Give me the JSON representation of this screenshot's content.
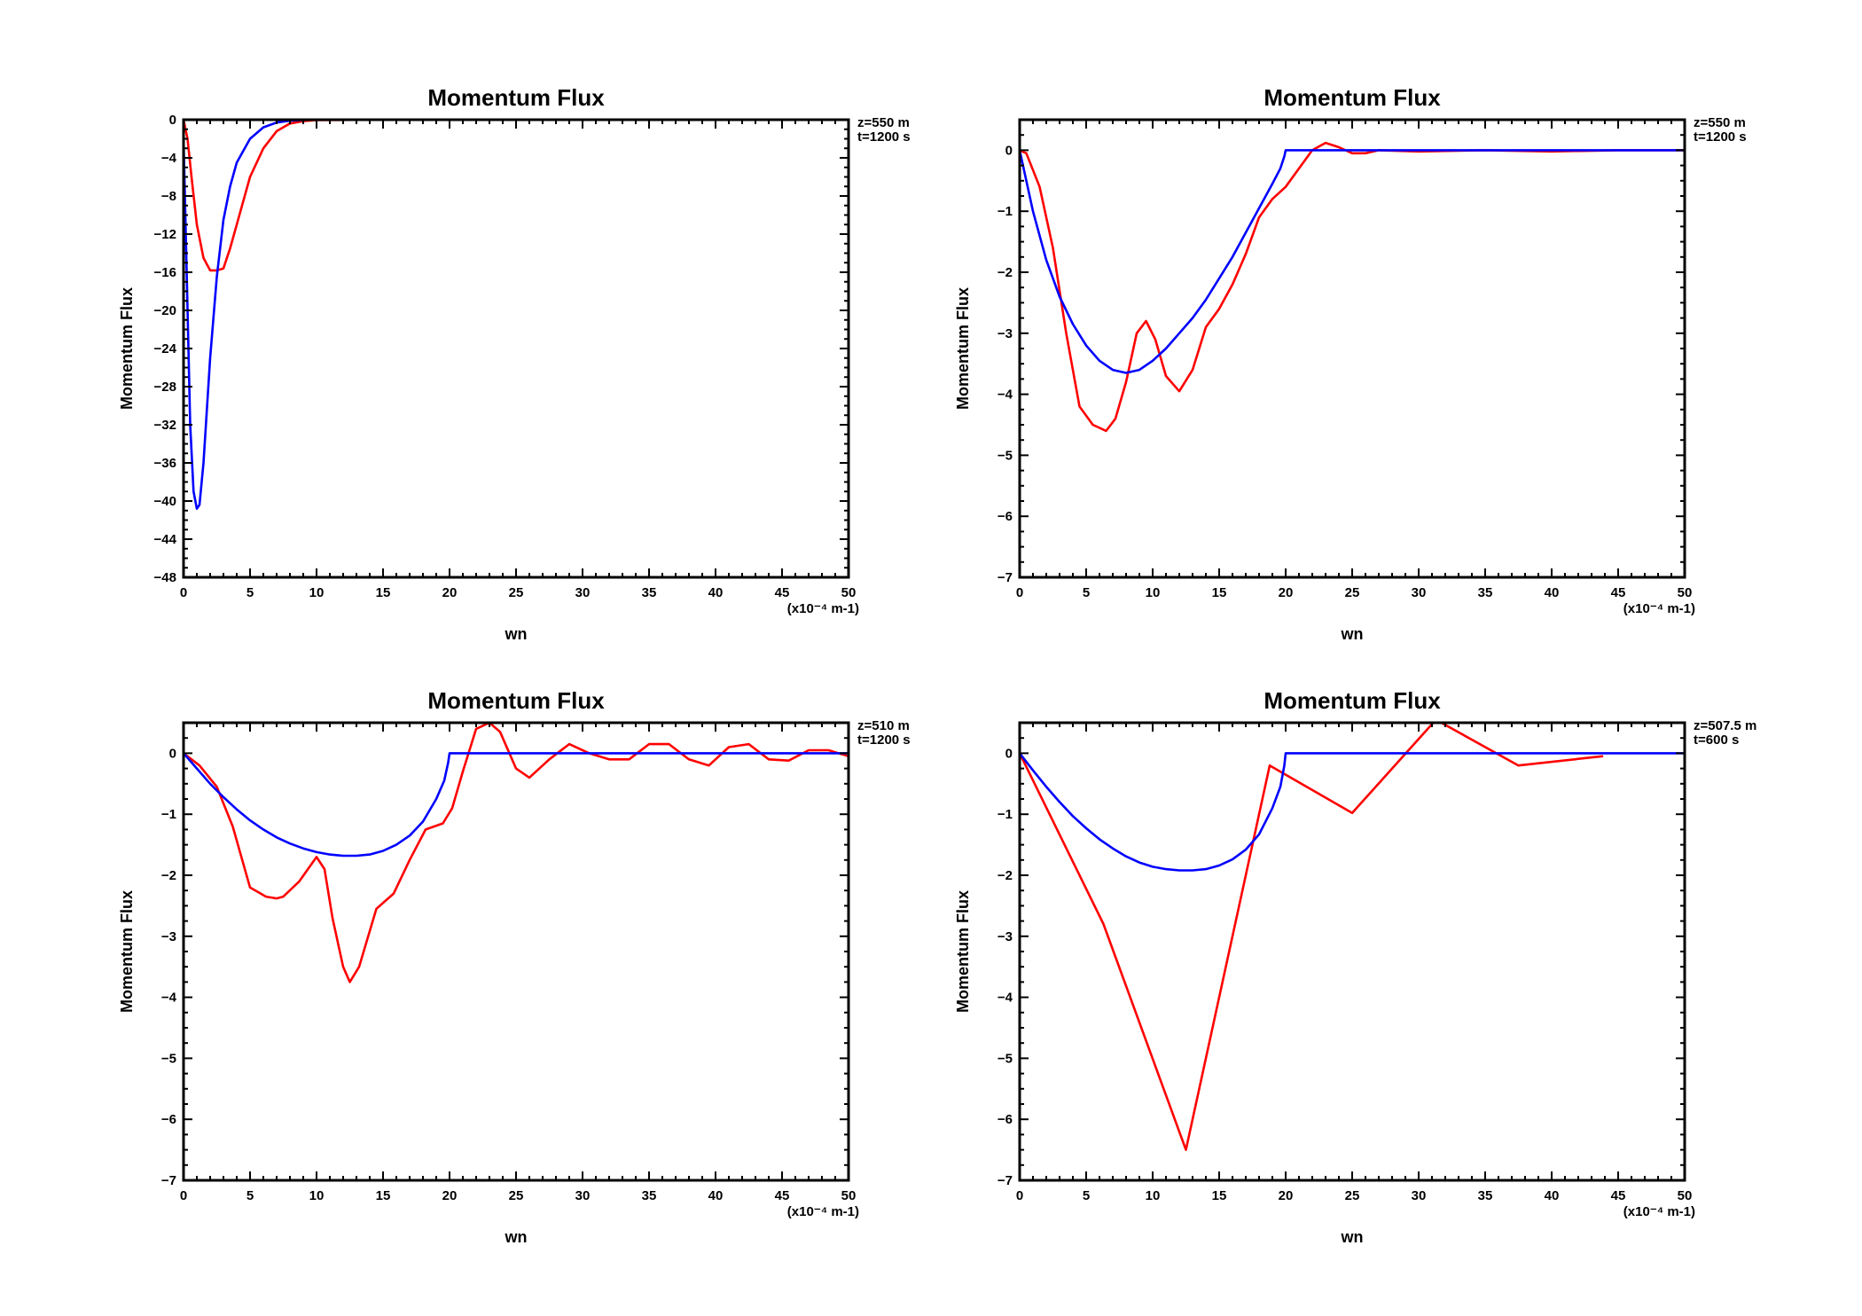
{
  "chart_data": [
    {
      "type": "line",
      "title": "Momentum Flux",
      "xlabel": "wn",
      "ylabel": "Momentum Flux",
      "x_unit_note": "(x10⁻⁴ m-1)",
      "annotations": [
        "z=550 m",
        "t=1200 s"
      ],
      "xlim": [
        0,
        50
      ],
      "ylim": [
        -48,
        0
      ],
      "xticks": [
        0,
        5,
        10,
        15,
        20,
        25,
        30,
        35,
        40,
        45,
        50
      ],
      "yticks": [
        0,
        -4,
        -8,
        -12,
        -16,
        -20,
        -24,
        -28,
        -32,
        -36,
        -40,
        -44,
        -48
      ],
      "grid": false,
      "series": [
        {
          "color": "#ff0000",
          "x": [
            0,
            0.3,
            0.6,
            1.0,
            1.5,
            2.0,
            2.5,
            3.0,
            3.5,
            4.0,
            4.5,
            5.0,
            6.0,
            7.0,
            8.0,
            9.0,
            10.0,
            15,
            20,
            30,
            40,
            50
          ],
          "y": [
            0,
            -2,
            -6,
            -11,
            -14.5,
            -15.8,
            -15.8,
            -15.6,
            -13.5,
            -11,
            -8.5,
            -6,
            -3,
            -1.2,
            -0.4,
            -0.15,
            -0.05,
            0,
            0,
            0,
            0,
            0
          ]
        },
        {
          "color": "#0000ff",
          "x": [
            0,
            0.25,
            0.5,
            0.75,
            1.0,
            1.2,
            1.5,
            2.0,
            2.5,
            3.0,
            3.5,
            4.0,
            5.0,
            6.0,
            7.0,
            8.0,
            9.0,
            10.0,
            15,
            20,
            30,
            40,
            50
          ],
          "y": [
            -2,
            -17,
            -32,
            -39,
            -40.8,
            -40.4,
            -36,
            -25,
            -16.5,
            -10.5,
            -7,
            -4.5,
            -2,
            -0.8,
            -0.3,
            -0.1,
            -0.03,
            0,
            0,
            0,
            0,
            0,
            0
          ]
        }
      ]
    },
    {
      "type": "line",
      "title": "Momentum Flux",
      "xlabel": "wn",
      "ylabel": "Momentum Flux",
      "x_unit_note": "(x10⁻⁴ m-1)",
      "annotations": [
        "z=550 m",
        "t=1200 s"
      ],
      "xlim": [
        0,
        50
      ],
      "ylim": [
        -7,
        0.5
      ],
      "xticks": [
        0,
        5,
        10,
        15,
        20,
        25,
        30,
        35,
        40,
        45,
        50
      ],
      "yticks": [
        0,
        -1,
        -2,
        -3,
        -4,
        -5,
        -6,
        -7
      ],
      "grid": false,
      "series": [
        {
          "color": "#ff0000",
          "x": [
            0,
            0.5,
            1.5,
            2.5,
            3.5,
            4.5,
            5.5,
            6.5,
            7.2,
            8.0,
            8.8,
            9.5,
            10.2,
            11,
            12,
            13,
            14,
            15,
            16,
            17,
            18,
            19,
            20,
            21,
            22,
            23,
            24,
            25,
            26,
            27,
            30,
            35,
            40,
            45,
            50
          ],
          "y": [
            0,
            -0.05,
            -0.6,
            -1.6,
            -3.0,
            -4.2,
            -4.5,
            -4.6,
            -4.4,
            -3.8,
            -3.0,
            -2.8,
            -3.1,
            -3.7,
            -3.95,
            -3.6,
            -2.9,
            -2.6,
            -2.2,
            -1.7,
            -1.1,
            -0.8,
            -0.6,
            -0.3,
            0.0,
            0.12,
            0.05,
            -0.05,
            -0.05,
            0.0,
            -0.02,
            0.0,
            -0.02,
            0.0,
            0.0
          ]
        },
        {
          "color": "#0000ff",
          "x": [
            0,
            1,
            2,
            3,
            4,
            5,
            6,
            7,
            8,
            9,
            10,
            11,
            12,
            13,
            14,
            15,
            16,
            17,
            18,
            19,
            19.6,
            19.9,
            20,
            30,
            40,
            50
          ],
          "y": [
            0,
            -1.0,
            -1.8,
            -2.4,
            -2.85,
            -3.2,
            -3.45,
            -3.6,
            -3.65,
            -3.6,
            -3.45,
            -3.25,
            -3.0,
            -2.75,
            -2.45,
            -2.1,
            -1.75,
            -1.35,
            -0.95,
            -0.55,
            -0.3,
            -0.1,
            0,
            0,
            0,
            0
          ]
        }
      ]
    },
    {
      "type": "line",
      "title": "Momentum Flux",
      "xlabel": "wn",
      "ylabel": "Momentum Flux",
      "x_unit_note": "(x10⁻⁴ m-1)",
      "annotations": [
        "z=510 m",
        "t=1200 s"
      ],
      "xlim": [
        0,
        50
      ],
      "ylim": [
        -7,
        0.5
      ],
      "xticks": [
        0,
        5,
        10,
        15,
        20,
        25,
        30,
        35,
        40,
        45,
        50
      ],
      "yticks": [
        0,
        -1,
        -2,
        -3,
        -4,
        -5,
        -6,
        -7
      ],
      "grid": false,
      "series": [
        {
          "color": "#ff0000",
          "x": [
            0,
            1.2,
            2.5,
            3.7,
            5.0,
            6.2,
            7.0,
            7.5,
            8.7,
            10.0,
            10.6,
            11.2,
            12.0,
            12.5,
            13.2,
            14.5,
            15.8,
            17.0,
            18.2,
            19.5,
            20.2,
            21.0,
            22.0,
            23.0,
            23.8,
            25.0,
            26.0,
            27.5,
            29.0,
            30.5,
            32.0,
            33.5,
            35.0,
            36.5,
            38.0,
            39.5,
            41.0,
            42.5,
            44.0,
            45.5,
            47.0,
            48.5,
            50
          ],
          "y": [
            0,
            -0.2,
            -0.55,
            -1.2,
            -2.2,
            -2.35,
            -2.38,
            -2.35,
            -2.1,
            -1.7,
            -1.9,
            -2.7,
            -3.5,
            -3.75,
            -3.5,
            -2.55,
            -2.3,
            -1.75,
            -1.25,
            -1.15,
            -0.9,
            -0.3,
            0.4,
            0.5,
            0.35,
            -0.25,
            -0.4,
            -0.1,
            0.15,
            0.0,
            -0.1,
            -0.1,
            0.15,
            0.15,
            -0.1,
            -0.2,
            0.1,
            0.15,
            -0.1,
            -0.12,
            0.05,
            0.05,
            -0.05
          ]
        },
        {
          "color": "#0000ff",
          "x": [
            0,
            1,
            2,
            3,
            4,
            5,
            6,
            7,
            8,
            9,
            10,
            11,
            12,
            13,
            14,
            15,
            16,
            17,
            18,
            19,
            19.6,
            19.9,
            20,
            30,
            40,
            50
          ],
          "y": [
            0,
            -0.25,
            -0.5,
            -0.72,
            -0.92,
            -1.1,
            -1.25,
            -1.38,
            -1.48,
            -1.56,
            -1.62,
            -1.66,
            -1.68,
            -1.68,
            -1.66,
            -1.6,
            -1.5,
            -1.35,
            -1.12,
            -0.75,
            -0.45,
            -0.15,
            0,
            0,
            0,
            0
          ]
        }
      ]
    },
    {
      "type": "line",
      "title": "Momentum Flux",
      "xlabel": "wn",
      "ylabel": "Momentum Flux",
      "x_unit_note": "(x10⁻⁴ m-1)",
      "annotations": [
        "z=507.5 m",
        "t=600 s"
      ],
      "xlim": [
        0,
        50
      ],
      "ylim": [
        -7,
        0.5
      ],
      "xticks": [
        0,
        5,
        10,
        15,
        20,
        25,
        30,
        35,
        40,
        45,
        50
      ],
      "yticks": [
        0,
        -1,
        -2,
        -3,
        -4,
        -5,
        -6,
        -7
      ],
      "grid": false,
      "series": [
        {
          "color": "#ff0000",
          "x": [
            0,
            6.3,
            12.5,
            18.8,
            25.0,
            31.3,
            37.5,
            43.8
          ],
          "y": [
            0,
            -2.8,
            -6.5,
            -0.2,
            -0.98,
            0.55,
            -0.2,
            -0.05
          ]
        },
        {
          "color": "#0000ff",
          "x": [
            0,
            1,
            2,
            3,
            4,
            5,
            6,
            7,
            8,
            9,
            10,
            11,
            12,
            13,
            14,
            15,
            16,
            17,
            18,
            19,
            19.6,
            19.9,
            20,
            30,
            40,
            50
          ],
          "y": [
            0,
            -0.28,
            -0.55,
            -0.8,
            -1.03,
            -1.23,
            -1.41,
            -1.56,
            -1.69,
            -1.79,
            -1.86,
            -1.9,
            -1.92,
            -1.92,
            -1.9,
            -1.84,
            -1.74,
            -1.58,
            -1.33,
            -0.9,
            -0.55,
            -0.2,
            0,
            0,
            0,
            0
          ]
        }
      ]
    }
  ]
}
